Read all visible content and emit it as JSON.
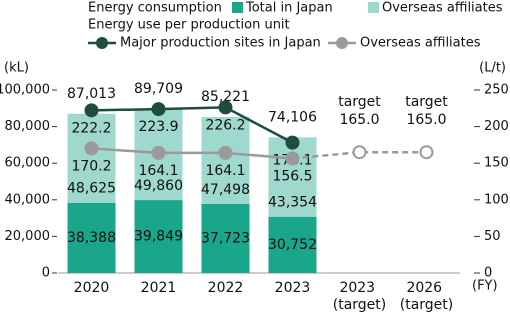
{
  "chart_data": {
    "type": "bar",
    "legend_heading": "Energy consumption",
    "line_legend_heading": "Energy use per production unit",
    "y_unit": "(kL)",
    "y2_unit": "(L/t)",
    "x_unit": "(FY)",
    "categories": [
      "2020",
      "2021",
      "2022",
      "2023",
      "2023 (target)",
      "2026 (target)"
    ],
    "series": [
      {
        "name": "Total in Japan",
        "color": "#1aa68a",
        "values": [
          38388,
          39849,
          37723,
          30752,
          null,
          null
        ],
        "value_labels": [
          "38,388",
          "39,849",
          "37,723",
          "30,752",
          null,
          null
        ]
      },
      {
        "name": "Overseas affiliates",
        "color": "#9fd8cc",
        "values": [
          48625,
          49860,
          47498,
          43354,
          null,
          null
        ],
        "value_labels": [
          "48,625",
          "49,860",
          "47,498",
          "43,354",
          null,
          null
        ]
      }
    ],
    "total_labels": [
      "87,013",
      "89,709",
      "85,221",
      "74,106",
      null,
      null
    ],
    "line_series": [
      {
        "name": "Major production sites in Japan",
        "color": "#1e4d3b",
        "axis": "y2",
        "values": [
          222.2,
          223.9,
          226.2,
          178.1,
          null,
          null
        ],
        "value_labels": [
          "222.2",
          "223.9",
          "226.2",
          "178.1",
          null,
          null
        ]
      },
      {
        "name": "Overseas affiliates",
        "color": "#9a9a9a",
        "axis": "y2",
        "values": [
          170.2,
          164.1,
          164.1,
          156.5,
          165.0,
          165.0
        ],
        "value_labels": [
          "170.2",
          "164.1",
          "164.1",
          "156.5",
          "165.0",
          "165.0"
        ],
        "dashed_from": 3
      }
    ],
    "target_labels": [
      null,
      null,
      null,
      null,
      "target",
      "target"
    ],
    "ylim": [
      0,
      100000
    ],
    "yticks": [
      {
        "value": 0,
        "label": "0"
      },
      {
        "value": 20000,
        "label": "20,000"
      },
      {
        "value": 40000,
        "label": "40,000"
      },
      {
        "value": 60000,
        "label": "60,000"
      },
      {
        "value": 80000,
        "label": "80,000"
      },
      {
        "value": 100000,
        "label": "100,000"
      }
    ],
    "y2lim": [
      0,
      250
    ],
    "y2ticks": [
      0,
      50,
      100,
      150,
      200,
      250
    ]
  }
}
